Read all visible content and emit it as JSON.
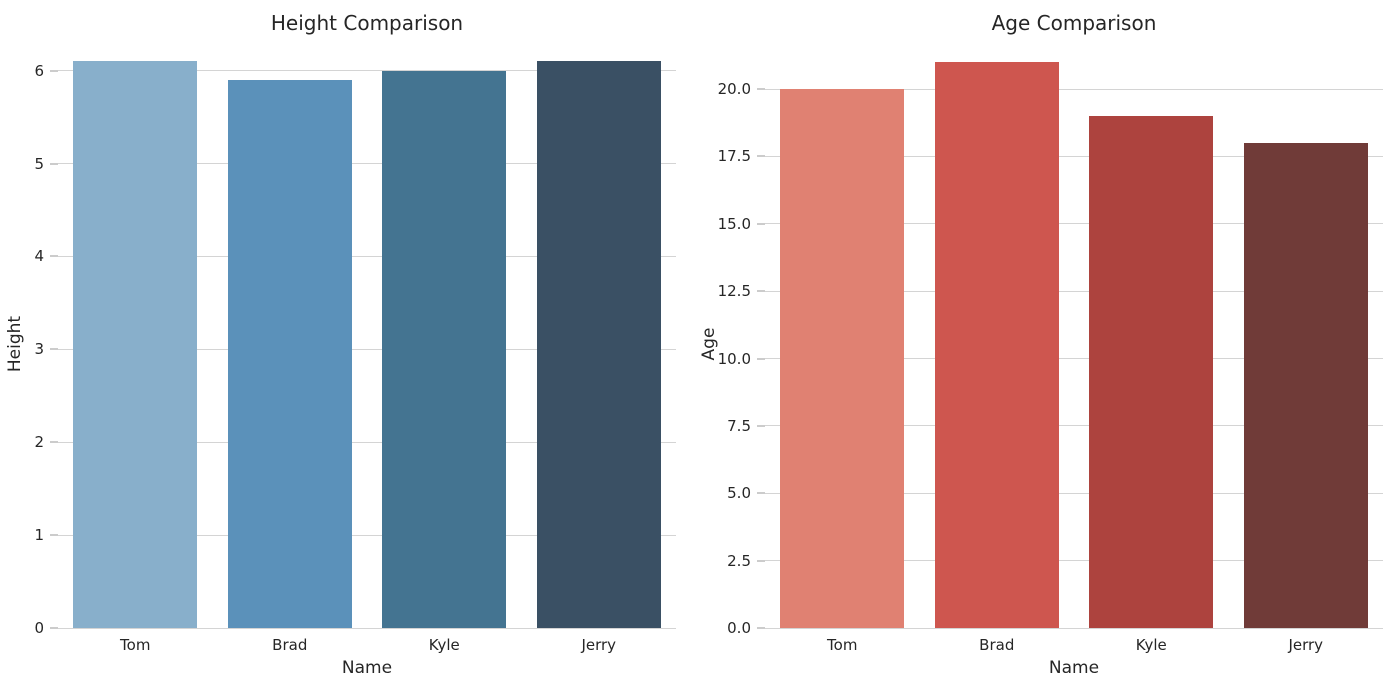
{
  "figure": {
    "background_color": "#ffffff",
    "text_color": "#262626",
    "grid_color": "#d4d4d4",
    "tick_color": "#cccccc"
  },
  "chart_data": [
    {
      "type": "bar",
      "title": "Height Comparison",
      "xlabel": "Name",
      "ylabel": "Height",
      "categories": [
        "Tom",
        "Brad",
        "Kyle",
        "Jerry"
      ],
      "values": [
        6.1,
        5.9,
        6.0,
        6.1
      ],
      "bar_colors": [
        "#88afcb",
        "#5b91ba",
        "#447491",
        "#3a5064"
      ],
      "ylim": [
        0,
        6.33
      ],
      "yticks": [
        {
          "value": 0,
          "label": "0"
        },
        {
          "value": 1,
          "label": "1"
        },
        {
          "value": 2,
          "label": "2"
        },
        {
          "value": 3,
          "label": "3"
        },
        {
          "value": 4,
          "label": "4"
        },
        {
          "value": 5,
          "label": "5"
        },
        {
          "value": 6,
          "label": "6"
        }
      ],
      "grid": "horizontal",
      "legend": "none"
    },
    {
      "type": "bar",
      "title": "Age Comparison",
      "xlabel": "Name",
      "ylabel": "Age",
      "categories": [
        "Tom",
        "Brad",
        "Kyle",
        "Jerry"
      ],
      "values": [
        20,
        21,
        19,
        18
      ],
      "bar_colors": [
        "#e08172",
        "#ce564f",
        "#ad433e",
        "#703b38"
      ],
      "ylim": [
        0,
        21.82
      ],
      "yticks": [
        {
          "value": 0,
          "label": "0.0"
        },
        {
          "value": 2.5,
          "label": "2.5"
        },
        {
          "value": 5,
          "label": "5.0"
        },
        {
          "value": 7.5,
          "label": "7.5"
        },
        {
          "value": 10,
          "label": "10.0"
        },
        {
          "value": 12.5,
          "label": "12.5"
        },
        {
          "value": 15,
          "label": "15.0"
        },
        {
          "value": 17.5,
          "label": "17.5"
        },
        {
          "value": 20,
          "label": "20.0"
        }
      ],
      "grid": "horizontal",
      "legend": "none"
    }
  ]
}
